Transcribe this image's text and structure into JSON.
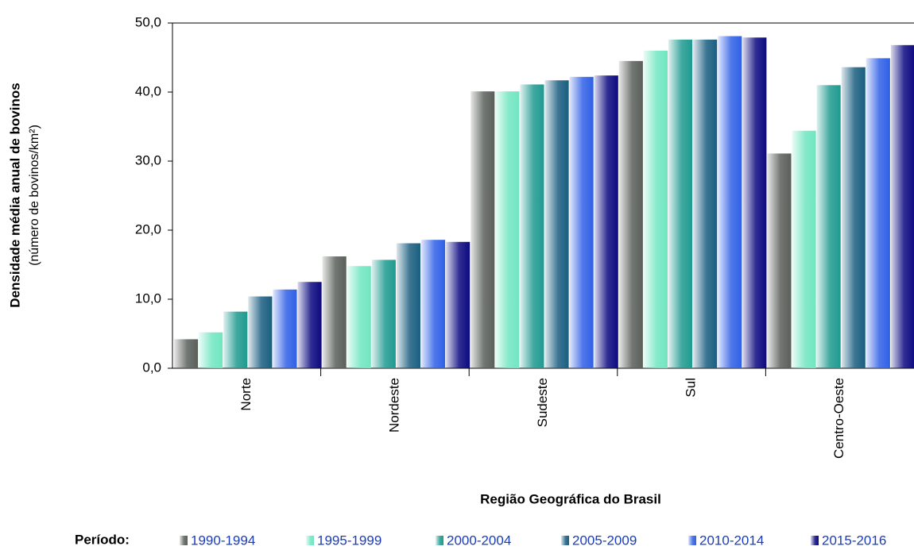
{
  "chart_data": {
    "type": "bar",
    "y_label": "Densidade média anual de bovinos",
    "y_sublabel": "(número de bovinos/km²)",
    "x_label": "Região Geográfica do Brasil",
    "legend_title": "Período:",
    "categories": [
      "Norte",
      "Nordeste",
      "Sudeste",
      "Sul",
      "Centro-Oeste"
    ],
    "series": [
      {
        "name": "1990-1994",
        "color": "#5a5f5a",
        "values": [
          4.2,
          16.2,
          40.1,
          44.5,
          31.1
        ]
      },
      {
        "name": "1995-1999",
        "color": "#70e6c0",
        "values": [
          5.2,
          14.8,
          40.1,
          46.0,
          34.4
        ]
      },
      {
        "name": "2000-2004",
        "color": "#1f9a90",
        "values": [
          8.2,
          15.7,
          41.1,
          47.6,
          41.0
        ]
      },
      {
        "name": "2005-2009",
        "color": "#1a5e80",
        "values": [
          10.4,
          18.1,
          41.7,
          47.6,
          43.6
        ]
      },
      {
        "name": "2010-2014",
        "color": "#3060e6",
        "values": [
          11.4,
          18.6,
          42.2,
          48.1,
          44.9
        ]
      },
      {
        "name": "2015-2016",
        "color": "#0c0a80",
        "values": [
          12.5,
          18.3,
          42.4,
          47.9,
          46.8
        ]
      }
    ],
    "ylim": [
      0,
      50
    ],
    "yticks": [
      {
        "value": 0,
        "label": "0,0"
      },
      {
        "value": 10,
        "label": "10,0"
      },
      {
        "value": 20,
        "label": "20,0"
      },
      {
        "value": 30,
        "label": "30,0"
      },
      {
        "value": 40,
        "label": "40,0"
      },
      {
        "value": 50,
        "label": "50,0"
      }
    ],
    "grid": false
  }
}
